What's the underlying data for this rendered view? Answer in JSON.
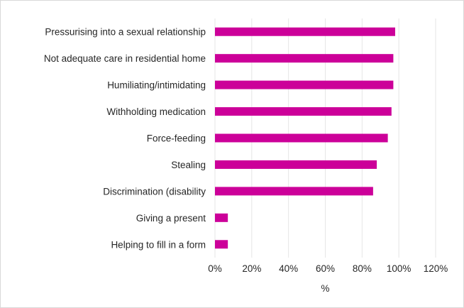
{
  "chart_data": {
    "type": "bar",
    "orientation": "horizontal",
    "categories": [
      "Pressurising into  a sexual relationship",
      "Not adequate care in residential home",
      "Humiliating/intimidating",
      "Withholding medication",
      "Force-feeding",
      "Stealing",
      "Discrimination (disability",
      "Giving a present",
      "Helping to fill in a form"
    ],
    "values": [
      98,
      97,
      97,
      96,
      94,
      88,
      86,
      7,
      7
    ],
    "unit": "%",
    "xlabel": "%",
    "ylabel": "",
    "xlim": [
      0,
      120
    ],
    "xticks": [
      0,
      20,
      40,
      60,
      80,
      100,
      120
    ],
    "tick_suffix": "%",
    "bar_color": "#cc0099",
    "grid": true
  }
}
